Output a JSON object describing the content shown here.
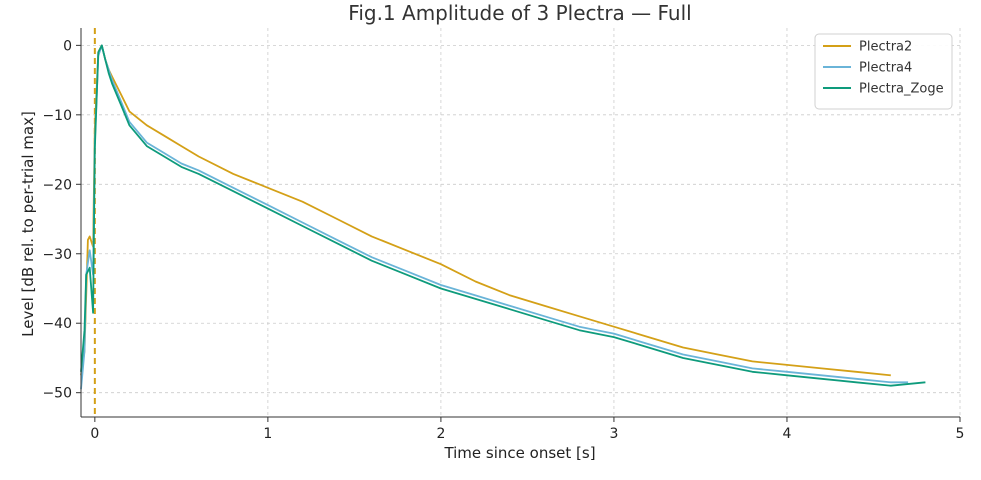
{
  "chart_data": {
    "type": "line",
    "title": "Fig.1 Amplitude of 3 Plectra — Full",
    "xlabel": "Time since onset [s]",
    "ylabel": "Level [dB rel. to per-trial max]",
    "xlim": [
      -0.08,
      5.0
    ],
    "ylim": [
      -53.5,
      2.5
    ],
    "xticks": [
      0,
      1,
      2,
      3,
      4,
      5
    ],
    "yticks": [
      0,
      -10,
      -20,
      -30,
      -40,
      -50
    ],
    "grid": true,
    "legend_position": "top-right",
    "onset_marker": {
      "x": 0,
      "style": "dashed",
      "color": "#d4a017"
    },
    "series": [
      {
        "name": "Plectra2",
        "color": "#d4a017",
        "x": [
          -0.08,
          -0.06,
          -0.04,
          -0.03,
          -0.01,
          0.0,
          0.02,
          0.04,
          0.06,
          0.08,
          0.1,
          0.15,
          0.2,
          0.3,
          0.4,
          0.5,
          0.6,
          0.8,
          1.0,
          1.2,
          1.4,
          1.6,
          1.8,
          2.0,
          2.2,
          2.4,
          2.6,
          2.8,
          3.0,
          3.2,
          3.4,
          3.6,
          3.8,
          4.0,
          4.2,
          4.4,
          4.6
        ],
        "y": [
          -47.5,
          -44.0,
          -28.0,
          -27.5,
          -29.0,
          -12.0,
          -1.0,
          0.0,
          -2.0,
          -3.5,
          -4.5,
          -7.0,
          -9.5,
          -11.5,
          -13.0,
          -14.5,
          -16.0,
          -18.5,
          -20.5,
          -22.5,
          -25.0,
          -27.5,
          -29.5,
          -31.5,
          -34.0,
          -36.0,
          -37.5,
          -39.0,
          -40.5,
          -42.0,
          -43.5,
          -44.5,
          -45.5,
          -46.0,
          -46.5,
          -47.0,
          -47.5
        ]
      },
      {
        "name": "Plectra4",
        "color": "#6ab4d8",
        "x": [
          -0.08,
          -0.06,
          -0.05,
          -0.03,
          -0.01,
          0.0,
          0.02,
          0.04,
          0.06,
          0.08,
          0.1,
          0.15,
          0.2,
          0.3,
          0.4,
          0.5,
          0.6,
          0.8,
          1.0,
          1.2,
          1.4,
          1.6,
          1.8,
          2.0,
          2.2,
          2.4,
          2.6,
          2.8,
          3.0,
          3.2,
          3.4,
          3.6,
          3.8,
          4.0,
          4.2,
          4.4,
          4.6,
          4.7
        ],
        "y": [
          -49.5,
          -44.0,
          -33.0,
          -29.5,
          -33.0,
          -14.0,
          -1.5,
          0.0,
          -2.0,
          -3.5,
          -5.0,
          -8.0,
          -11.0,
          -14.0,
          -15.5,
          -17.0,
          -18.0,
          -20.5,
          -23.0,
          -25.5,
          -28.0,
          -30.5,
          -32.5,
          -34.5,
          -36.0,
          -37.5,
          -39.0,
          -40.5,
          -41.5,
          -43.0,
          -44.5,
          -45.5,
          -46.5,
          -47.0,
          -47.5,
          -48.0,
          -48.5,
          -48.5
        ]
      },
      {
        "name": "Plectra_Zoge",
        "color": "#0e9b7c",
        "x": [
          -0.08,
          -0.06,
          -0.05,
          -0.03,
          -0.01,
          0.0,
          0.02,
          0.04,
          0.06,
          0.08,
          0.1,
          0.15,
          0.2,
          0.3,
          0.4,
          0.5,
          0.6,
          0.8,
          1.0,
          1.2,
          1.4,
          1.6,
          1.8,
          2.0,
          2.2,
          2.4,
          2.6,
          2.8,
          3.0,
          3.2,
          3.4,
          3.6,
          3.8,
          4.0,
          4.2,
          4.4,
          4.6,
          4.8
        ],
        "y": [
          -47.0,
          -41.0,
          -33.0,
          -32.0,
          -38.5,
          -15.0,
          -1.0,
          0.0,
          -2.0,
          -4.0,
          -5.5,
          -8.5,
          -11.5,
          -14.5,
          -16.0,
          -17.5,
          -18.5,
          -21.0,
          -23.5,
          -26.0,
          -28.5,
          -31.0,
          -33.0,
          -35.0,
          -36.5,
          -38.0,
          -39.5,
          -41.0,
          -42.0,
          -43.5,
          -45.0,
          -46.0,
          -47.0,
          -47.5,
          -48.0,
          -48.5,
          -49.0,
          -48.5
        ]
      }
    ]
  }
}
